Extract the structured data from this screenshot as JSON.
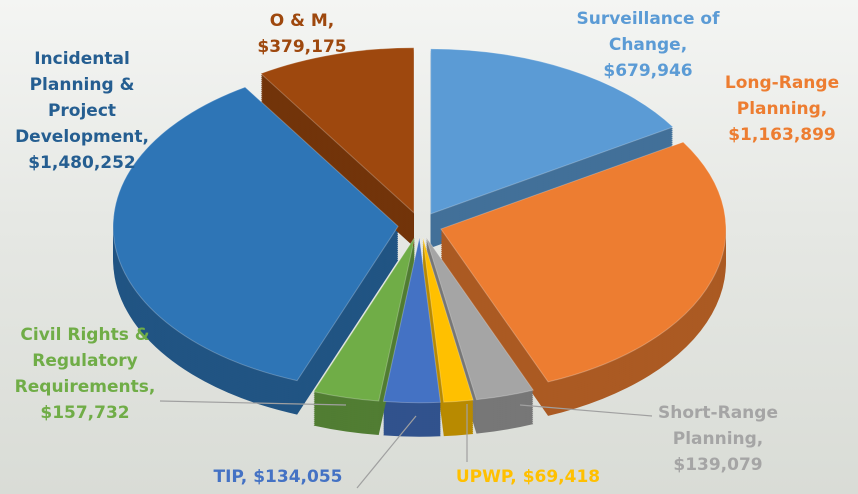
{
  "chart_data": {
    "type": "pie",
    "categories": [
      "Surveillance of Change,",
      "Long-Range Planning,",
      "Short-Range Planning,",
      "UPWP,",
      "TIP,",
      "Civil Rights & Regulatory Requirements,",
      "Incidental Planning & Project Development,",
      "O & M,"
    ],
    "values": [
      679946,
      1163899,
      139079,
      69418,
      134055,
      157732,
      1480252,
      379175
    ],
    "value_labels": [
      "$679,946",
      "$1,163,899",
      "$139,079",
      "$69,418",
      "$134,055",
      "$157,732",
      "$1,480,252",
      "$379,175"
    ],
    "colors": [
      "#5b9bd5",
      "#ed7d31",
      "#a5a5a5",
      "#ffc000",
      "#4472c4",
      "#70ad47",
      "#2e75b6",
      "#9e480e"
    ]
  }
}
